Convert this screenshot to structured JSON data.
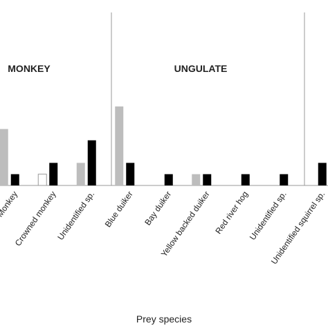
{
  "chart_data": {
    "type": "bar",
    "x_label": "Prey species",
    "groups": [
      "MONKEY",
      "UNGULATE"
    ],
    "categories": [
      "Monkey",
      "Crowned monkey",
      "Unidentified sp.",
      "Blue duiker",
      "Bay duiker",
      "Yellow backed duiker",
      "Red river hog",
      "Unidentified sp.",
      "Unidentified squirrel sp."
    ],
    "series": [
      {
        "color": "#bdbdbd",
        "values": [
          5,
          null,
          2,
          7,
          null,
          1,
          null,
          null,
          null
        ]
      },
      {
        "color": "#ffffff",
        "values": [
          null,
          1,
          null,
          null,
          null,
          null,
          null,
          null,
          null
        ]
      },
      {
        "color": "#000000",
        "values": [
          1,
          2,
          4,
          2,
          1,
          1,
          1,
          1,
          2
        ]
      }
    ],
    "ylim": [
      0,
      16
    ]
  }
}
